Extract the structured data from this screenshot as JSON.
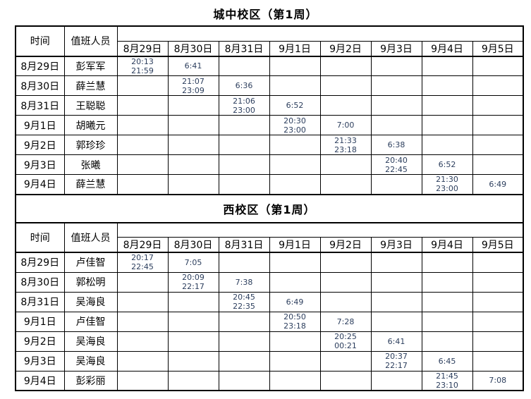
{
  "titles": {
    "campus1": "城中校区（第1周）",
    "campus2": "西校区（第1周）"
  },
  "headers": {
    "time": "时间",
    "staff": "值班人员",
    "dates": [
      "8月29日",
      "8月30日",
      "8月31日",
      "9月1日",
      "9月2日",
      "9月3日",
      "9月4日",
      "9月5日"
    ]
  },
  "campus1_rows": [
    {
      "date": "8月29日",
      "name": "彭军军",
      "cells": [
        [
          "20:13",
          "21:59"
        ],
        [
          "6:41"
        ],
        [],
        [],
        [],
        [],
        [],
        []
      ]
    },
    {
      "date": "8月30日",
      "name": "薛兰慧",
      "cells": [
        [],
        [
          "21:07",
          "23:09"
        ],
        [
          "6:36"
        ],
        [],
        [],
        [],
        [],
        []
      ]
    },
    {
      "date": "8月31日",
      "name": "王聪聪",
      "cells": [
        [],
        [],
        [
          "21:06",
          "23:00"
        ],
        [
          "6:52"
        ],
        [],
        [],
        [],
        []
      ]
    },
    {
      "date": "9月1日",
      "name": "胡曦元",
      "cells": [
        [],
        [],
        [],
        [
          "20:30",
          "23:00"
        ],
        [
          "7:00"
        ],
        [],
        [],
        []
      ]
    },
    {
      "date": "9月2日",
      "name": "郭珍珍",
      "cells": [
        [],
        [],
        [],
        [],
        [
          "21:33",
          "23:18"
        ],
        [
          "6:38"
        ],
        [],
        []
      ]
    },
    {
      "date": "9月3日",
      "name": "张曦",
      "cells": [
        [],
        [],
        [],
        [],
        [],
        [
          "20:40",
          "22:45"
        ],
        [
          "6:52"
        ],
        []
      ]
    },
    {
      "date": "9月4日",
      "name": "薛兰慧",
      "cells": [
        [],
        [],
        [],
        [],
        [],
        [],
        [
          "21:30",
          "23:00"
        ],
        [
          "6:49"
        ]
      ]
    }
  ],
  "campus2_rows": [
    {
      "date": "8月29日",
      "name": "卢佳智",
      "cells": [
        [
          "20:17",
          "22:45"
        ],
        [
          "7:05"
        ],
        [],
        [],
        [],
        [],
        [],
        []
      ]
    },
    {
      "date": "8月30日",
      "name": "郭松明",
      "cells": [
        [],
        [
          "20:09",
          "22:17"
        ],
        [
          "7:38"
        ],
        [],
        [],
        [],
        [],
        []
      ]
    },
    {
      "date": "8月31日",
      "name": "吴海良",
      "cells": [
        [],
        [],
        [
          "20:45",
          "22:35"
        ],
        [
          "6:49"
        ],
        [],
        [],
        [],
        []
      ]
    },
    {
      "date": "9月1日",
      "name": "卢佳智",
      "cells": [
        [],
        [],
        [],
        [
          "20:50",
          "23:18"
        ],
        [
          "7:28"
        ],
        [],
        [],
        []
      ]
    },
    {
      "date": "9月2日",
      "name": "吴海良",
      "cells": [
        [],
        [],
        [],
        [],
        [
          "20:25",
          "00:21"
        ],
        [
          "6:41"
        ],
        [],
        []
      ]
    },
    {
      "date": "9月3日",
      "name": "吴海良",
      "cells": [
        [],
        [],
        [],
        [],
        [],
        [
          "20:37",
          "22:17"
        ],
        [
          "6:45"
        ],
        []
      ]
    },
    {
      "date": "9月4日",
      "name": "彭彩丽",
      "cells": [
        [],
        [],
        [],
        [],
        [],
        [],
        [
          "21:45",
          "23:10"
        ],
        [
          "7:08"
        ]
      ]
    }
  ],
  "colors": {
    "time_text": "#2c3e5d",
    "border": "#000000",
    "background": "#ffffff"
  }
}
